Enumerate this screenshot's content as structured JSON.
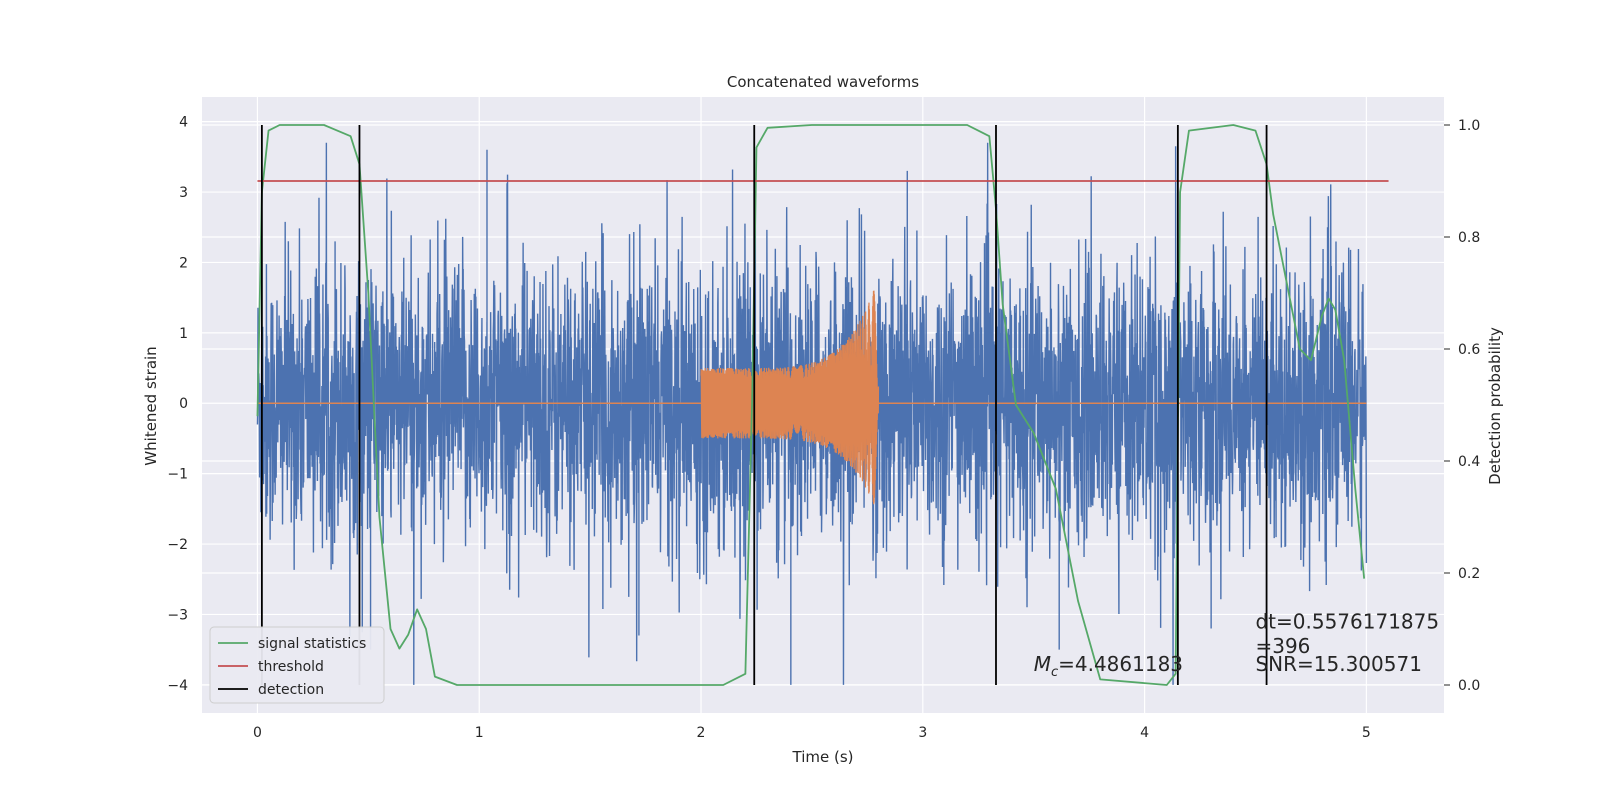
{
  "chart_data": {
    "type": "line",
    "title": "Concatenated waveforms",
    "xlabel": "Time (s)",
    "ylabel": "Whitened strain",
    "y2label": "Detection probability",
    "xlim": [
      -0.25,
      5.35
    ],
    "ylim": [
      -4.4,
      4.35
    ],
    "y2lim": [
      -0.05,
      1.05
    ],
    "x_ticks": [
      "0",
      "1",
      "2",
      "3",
      "4",
      "5"
    ],
    "y_ticks": [
      "−4",
      "−3",
      "−2",
      "−1",
      "0",
      "1",
      "2",
      "3",
      "4"
    ],
    "y2_ticks": [
      "0.0",
      "0.2",
      "0.4",
      "0.6",
      "0.8",
      "1.0"
    ],
    "grid": true,
    "legend_position": "lower-left",
    "legend": [
      {
        "label": "signal statistics",
        "color": "#55a868"
      },
      {
        "label": "threshold",
        "color": "#c44e52"
      },
      {
        "label": "detection",
        "color": "#000000"
      }
    ],
    "colors": {
      "strain": "#4c72b0",
      "injected": "#dd8452",
      "signal_statistics": "#55a868",
      "threshold": "#c44e52",
      "detection": "#000000",
      "plot_background": "#eaeaf2",
      "grid": "#ffffff"
    },
    "strain": {
      "x_range": [
        0,
        5
      ],
      "typical_amplitude": 1.5,
      "peak_values": [
        2.3,
        3.2,
        3.65,
        3.6,
        3.3,
        2.5,
        -3.3,
        -3.5,
        -3.5,
        -4.0,
        -3.2
      ]
    },
    "injected_chirp": {
      "t_start": 2.0,
      "t_end": 2.8,
      "amplitude_start": 0.5,
      "amplitude_end": 1.8,
      "lower_end": -1.6
    },
    "series": [
      {
        "name": "signal statistics",
        "x": [
          0.0,
          0.02,
          0.05,
          0.1,
          0.3,
          0.42,
          0.46,
          0.5,
          0.55,
          0.6,
          0.64,
          0.68,
          0.72,
          0.76,
          0.8,
          0.9,
          1.5,
          2.1,
          2.2,
          2.23,
          2.25,
          2.3,
          2.5,
          3.2,
          3.3,
          3.33,
          3.36,
          3.42,
          3.5,
          3.6,
          3.7,
          3.8,
          4.1,
          4.14,
          4.16,
          4.2,
          4.4,
          4.5,
          4.55,
          4.58,
          4.64,
          4.7,
          4.75,
          4.8,
          4.83,
          4.86,
          4.9,
          4.95,
          4.99
        ],
        "y": [
          0.48,
          0.88,
          0.99,
          1.0,
          1.0,
          0.98,
          0.93,
          0.7,
          0.3,
          0.1,
          0.065,
          0.09,
          0.135,
          0.1,
          0.015,
          0.0,
          0.0,
          0.0,
          0.02,
          0.5,
          0.96,
          0.995,
          1.0,
          1.0,
          0.98,
          0.85,
          0.68,
          0.5,
          0.45,
          0.35,
          0.15,
          0.01,
          0.0,
          0.02,
          0.88,
          0.99,
          1.0,
          0.99,
          0.93,
          0.84,
          0.72,
          0.6,
          0.58,
          0.66,
          0.69,
          0.67,
          0.58,
          0.35,
          0.19
        ]
      },
      {
        "name": "threshold",
        "x": [
          0.0,
          5.1
        ],
        "y": [
          0.9,
          0.9
        ]
      }
    ],
    "detections": [
      0.02,
      0.46,
      2.24,
      3.33,
      4.15,
      4.55
    ],
    "annotations": [
      {
        "label": "M_c=4.4861183",
        "sub": "c",
        "x": 3.5,
        "y": -3.8
      },
      {
        "label": "dt=0.5576171875",
        "x": 4.5,
        "y": -3.2
      },
      {
        "label": "  =396",
        "x": 4.5,
        "y": -3.55
      },
      {
        "label": "SNR=15.300571",
        "x": 4.5,
        "y": -3.8
      }
    ]
  }
}
